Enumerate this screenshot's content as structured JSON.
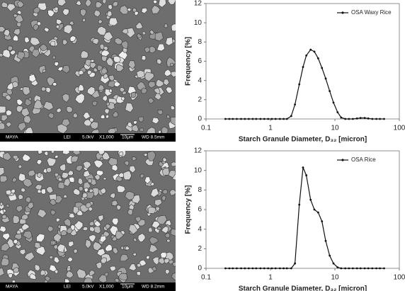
{
  "images": [
    {
      "labels": [
        "MAYA",
        "LEI",
        "5.0kV",
        "X1,000",
        "10μm",
        "WD 8.5mm"
      ]
    },
    {
      "labels": [
        "MAYA",
        "LEI",
        "5.0kV",
        "X1,000",
        "10μm",
        "WD 8.2mm"
      ]
    }
  ],
  "chart_data": [
    {
      "type": "line",
      "xscale": "log",
      "xlabel": "Starch Granule Diameter, D₃₂ [micron]",
      "ylabel": "Frequency [%]",
      "xlim": [
        0.1,
        100
      ],
      "xticks": [
        0.1,
        1,
        10,
        100
      ],
      "ylim": [
        0,
        12
      ],
      "yticks": [
        0,
        2,
        4,
        6,
        8,
        10,
        12
      ],
      "legend": "upper right",
      "x": [
        0.2,
        0.23,
        0.26,
        0.3,
        0.35,
        0.4,
        0.46,
        0.53,
        0.6,
        0.7,
        0.8,
        0.92,
        1.05,
        1.2,
        1.4,
        1.6,
        1.8,
        2.1,
        2.4,
        2.8,
        3.2,
        3.6,
        4.2,
        4.8,
        5.5,
        6.3,
        7.2,
        8.3,
        9.5,
        11,
        12.5,
        14.5,
        16.5,
        19,
        22,
        25,
        29,
        33,
        38,
        44,
        50,
        58
      ],
      "series": [
        {
          "name": "OSA Waxy Rice",
          "color": "#111111",
          "values": [
            0,
            0,
            0,
            0,
            0,
            0,
            0,
            0,
            0,
            0,
            0,
            0,
            0,
            0,
            0,
            0,
            0,
            0.3,
            1.5,
            3.6,
            5.4,
            6.6,
            7.2,
            7.0,
            6.3,
            5.3,
            4.2,
            2.9,
            1.7,
            0.7,
            0.15,
            0,
            0,
            0,
            0.05,
            0.1,
            0.1,
            0.05,
            0,
            0,
            0,
            0
          ]
        }
      ]
    },
    {
      "type": "line",
      "xscale": "log",
      "xlabel": "Starch Granule Diameter, D₃₂ [micron]",
      "ylabel": "Frequency [%]",
      "xlim": [
        0.1,
        100
      ],
      "xticks": [
        0.1,
        1,
        10,
        100
      ],
      "ylim": [
        0,
        12
      ],
      "yticks": [
        0,
        2,
        4,
        6,
        8,
        10,
        12
      ],
      "legend": "upper right",
      "x": [
        0.2,
        0.23,
        0.26,
        0.3,
        0.35,
        0.4,
        0.46,
        0.53,
        0.6,
        0.7,
        0.8,
        0.92,
        1.05,
        1.2,
        1.4,
        1.6,
        1.8,
        2.1,
        2.4,
        2.8,
        3.2,
        3.6,
        4.2,
        4.8,
        5.5,
        6.3,
        7.2,
        8.3,
        9.5,
        11,
        12.5,
        14.5,
        16.5,
        19,
        22,
        25,
        29,
        33,
        38,
        44,
        50,
        58
      ],
      "series": [
        {
          "name": "OSA Rice",
          "color": "#111111",
          "values": [
            0,
            0,
            0,
            0,
            0,
            0,
            0,
            0,
            0,
            0,
            0,
            0,
            0,
            0,
            0,
            0,
            0,
            0,
            0.5,
            6.5,
            10.3,
            9.5,
            7.0,
            6.0,
            5.7,
            4.8,
            2.8,
            1.3,
            0.5,
            0.1,
            0,
            0,
            0,
            0,
            0,
            0,
            0,
            0,
            0,
            0,
            0,
            0
          ]
        }
      ]
    }
  ]
}
